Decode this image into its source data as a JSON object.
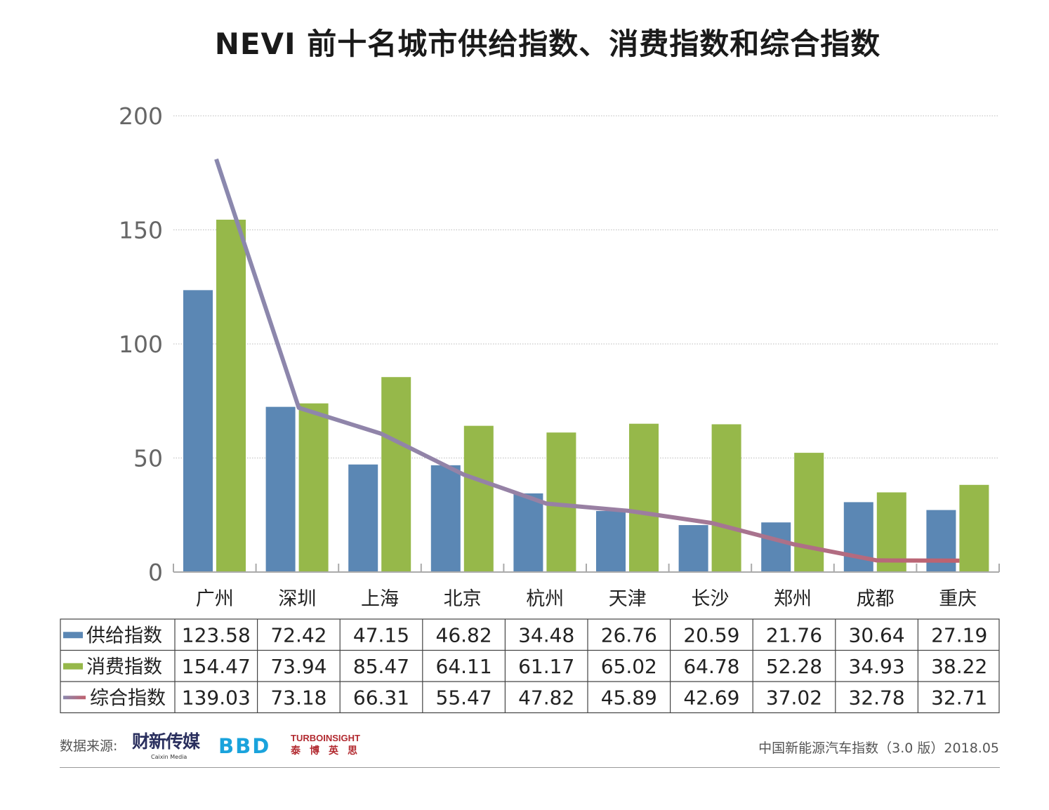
{
  "chart_data": {
    "type": "bar+line",
    "title": "NEVI 前十名城市供给指数、消费指数和综合指数",
    "categories": [
      "广州",
      "深圳",
      "上海",
      "北京",
      "杭州",
      "天津",
      "长沙",
      "郑州",
      "成都",
      "重庆"
    ],
    "ylim": [
      0,
      200
    ],
    "yticks": [
      "0",
      "50",
      "100",
      "150",
      "200"
    ],
    "grid": true,
    "secondary_ylim_hidden": [
      29.7,
      150.5
    ],
    "series": [
      {
        "name": "供给指数",
        "type": "bar",
        "color": "#5b87b4",
        "values": [
          123.58,
          72.42,
          47.15,
          46.82,
          34.48,
          26.76,
          20.59,
          21.76,
          30.64,
          27.19
        ],
        "labels": [
          "123.58",
          "72.42",
          "47.15",
          "46.82",
          "34.48",
          "26.76",
          "20.59",
          "21.76",
          "30.64",
          "27.19"
        ]
      },
      {
        "name": "消费指数",
        "type": "bar",
        "color": "#96b84a",
        "values": [
          154.47,
          73.94,
          85.47,
          64.11,
          61.17,
          65.02,
          64.78,
          52.28,
          34.93,
          38.22
        ],
        "labels": [
          "154.47",
          "73.94",
          "85.47",
          "64.11",
          "61.17",
          "65.02",
          "64.78",
          "52.28",
          "34.93",
          "38.22"
        ]
      },
      {
        "name": "综合指数",
        "type": "line",
        "color_start": "#8a88ae",
        "color_end": "#c0616e",
        "values": [
          139.03,
          73.18,
          66.31,
          55.47,
          47.82,
          45.89,
          42.69,
          37.02,
          32.78,
          32.71
        ],
        "labels": [
          "139.03",
          "73.18",
          "66.31",
          "55.47",
          "47.82",
          "45.89",
          "42.69",
          "37.02",
          "32.78",
          "32.71"
        ]
      }
    ],
    "legend": "table-left"
  },
  "footer": {
    "source_label": "数据来源:",
    "logos": {
      "caixin": "财新传媒",
      "caixin_en": "Caixin Media",
      "bbd": "BBD",
      "turbo": "TURBOINSIGHT",
      "turbo_cn": "泰博英思"
    },
    "right_text": "中国新能源汽车指数（3.0 版）2018.05"
  }
}
